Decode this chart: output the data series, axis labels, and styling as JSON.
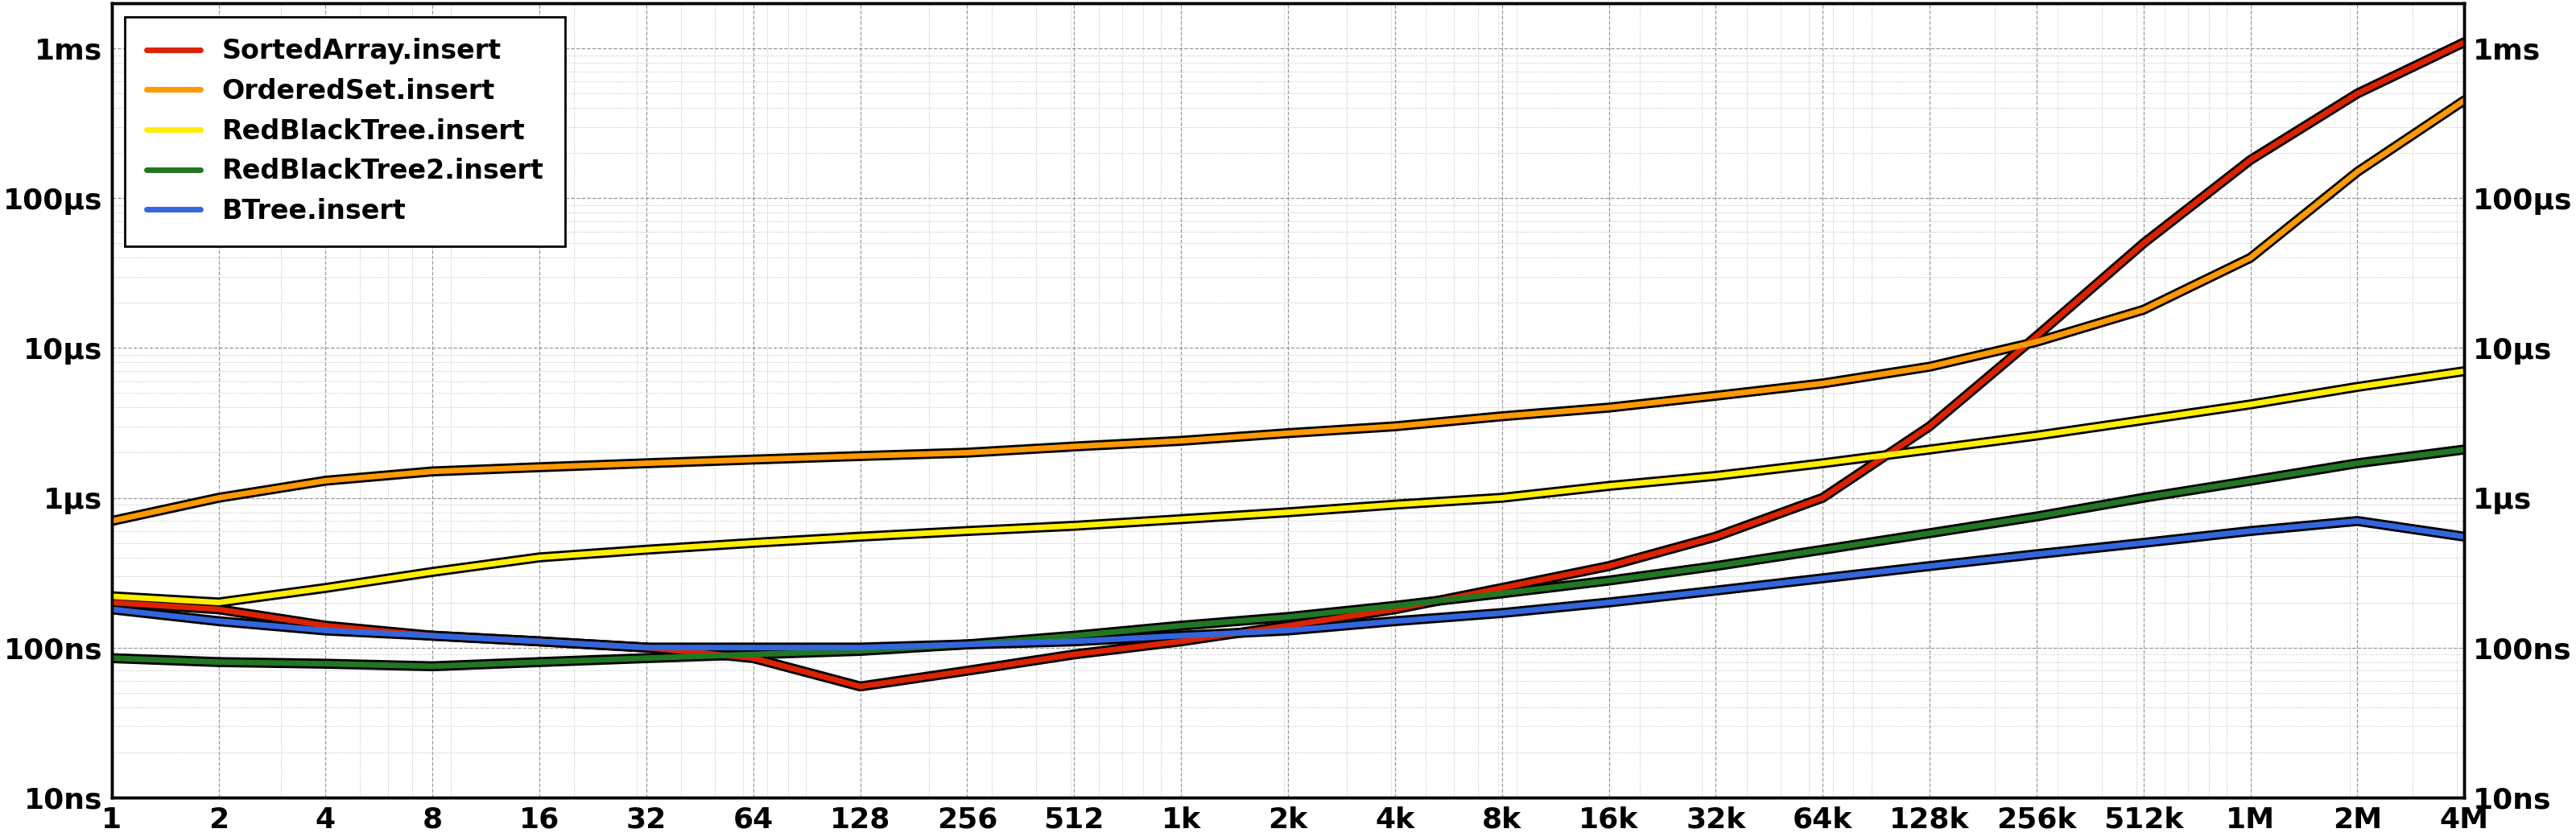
{
  "series": [
    {
      "label": "SortedArray.insert",
      "color": "#dd2200",
      "linewidth": 5,
      "x": [
        1,
        2,
        4,
        8,
        16,
        32,
        64,
        128,
        256,
        512,
        1024,
        2048,
        4096,
        8192,
        16384,
        32768,
        65536,
        131072,
        262144,
        524288,
        1048576,
        2097152,
        4194304
      ],
      "y": [
        2e-07,
        1.8e-07,
        1.4e-07,
        1.2e-07,
        1.1e-07,
        1e-07,
        8.5e-08,
        5.5e-08,
        7e-08,
        9e-08,
        1.1e-07,
        1.4e-07,
        1.8e-07,
        2.5e-07,
        3.5e-07,
        5.5e-07,
        1e-06,
        3e-06,
        1.2e-05,
        5e-05,
        0.00018,
        0.0005,
        0.0011
      ]
    },
    {
      "label": "OrderedSet.insert",
      "color": "#ff9900",
      "linewidth": 5,
      "x": [
        1,
        2,
        4,
        8,
        16,
        32,
        64,
        128,
        256,
        512,
        1024,
        2048,
        4096,
        8192,
        16384,
        32768,
        65536,
        131072,
        262144,
        524288,
        1048576,
        2097152,
        4194304
      ],
      "y": [
        7e-07,
        1e-06,
        1.3e-06,
        1.5e-06,
        1.6e-06,
        1.7e-06,
        1.8e-06,
        1.9e-06,
        2e-06,
        2.2e-06,
        2.4e-06,
        2.7e-06,
        3e-06,
        3.5e-06,
        4e-06,
        4.8e-06,
        5.8e-06,
        7.5e-06,
        1.1e-05,
        1.8e-05,
        4e-05,
        0.00015,
        0.00045
      ]
    },
    {
      "label": "RedBlackTree.insert",
      "color": "#ffee00",
      "linewidth": 5,
      "x": [
        1,
        2,
        4,
        8,
        16,
        32,
        64,
        128,
        256,
        512,
        1024,
        2048,
        4096,
        8192,
        16384,
        32768,
        65536,
        131072,
        262144,
        524288,
        1048576,
        2097152,
        4194304
      ],
      "y": [
        2.2e-07,
        2e-07,
        2.5e-07,
        3.2e-07,
        4e-07,
        4.5e-07,
        5e-07,
        5.5e-07,
        6e-07,
        6.5e-07,
        7.2e-07,
        8e-07,
        9e-07,
        1e-06,
        1.2e-06,
        1.4e-06,
        1.7e-06,
        2.1e-06,
        2.6e-06,
        3.3e-06,
        4.2e-06,
        5.5e-06,
        7e-06
      ]
    },
    {
      "label": "RedBlackTree2.insert",
      "color": "#227722",
      "linewidth": 5,
      "x": [
        1,
        2,
        4,
        8,
        16,
        32,
        64,
        128,
        256,
        512,
        1024,
        2048,
        4096,
        8192,
        16384,
        32768,
        65536,
        131072,
        262144,
        524288,
        1048576,
        2097152,
        4194304
      ],
      "y": [
        8.5e-08,
        8e-08,
        7.8e-08,
        7.5e-08,
        8e-08,
        8.5e-08,
        9e-08,
        9.5e-08,
        1.05e-07,
        1.2e-07,
        1.4e-07,
        1.6e-07,
        1.9e-07,
        2.3e-07,
        2.8e-07,
        3.5e-07,
        4.5e-07,
        5.8e-07,
        7.5e-07,
        1e-06,
        1.3e-06,
        1.7e-06,
        2.1e-06
      ]
    },
    {
      "label": "BTree.insert",
      "color": "#3366dd",
      "linewidth": 5,
      "x": [
        1,
        2,
        4,
        8,
        16,
        32,
        64,
        128,
        256,
        512,
        1024,
        2048,
        4096,
        8192,
        16384,
        32768,
        65536,
        131072,
        262144,
        524288,
        1048576,
        2097152,
        4194304
      ],
      "y": [
        1.8e-07,
        1.5e-07,
        1.3e-07,
        1.2e-07,
        1.1e-07,
        1e-07,
        1e-07,
        1e-07,
        1.05e-07,
        1.1e-07,
        1.2e-07,
        1.3e-07,
        1.5e-07,
        1.7e-07,
        2e-07,
        2.4e-07,
        2.9e-07,
        3.5e-07,
        4.2e-07,
        5e-07,
        6e-07,
        7e-07,
        5.5e-07
      ]
    }
  ],
  "x_ticks": [
    1,
    2,
    4,
    8,
    16,
    32,
    64,
    128,
    256,
    512,
    1024,
    2048,
    4096,
    8192,
    16384,
    32768,
    65536,
    131072,
    262144,
    524288,
    1048576,
    2097152,
    4194304
  ],
  "x_tick_labels": [
    "1",
    "2",
    "4",
    "8",
    "16",
    "32",
    "64",
    "128",
    "256",
    "512",
    "1k",
    "2k",
    "4k",
    "8k",
    "16k",
    "32k",
    "64k",
    "128k",
    "256k",
    "512k",
    "1M",
    "2M",
    "4M"
  ],
  "y_ticks": [
    1e-08,
    1e-07,
    1e-06,
    1e-05,
    0.0001,
    0.001
  ],
  "y_tick_labels": [
    "10ns",
    "100ns",
    "1μs",
    "10μs",
    "100μs",
    "1ms"
  ],
  "ylim": [
    1.2e-08,
    0.002
  ],
  "xlim": [
    1,
    4194304
  ],
  "background_color": "#ffffff",
  "grid_major_color": "#999999",
  "grid_minor_color": "#cccccc",
  "outline_color": "#000000",
  "tick_fontsize": 26,
  "legend_fontsize": 24
}
